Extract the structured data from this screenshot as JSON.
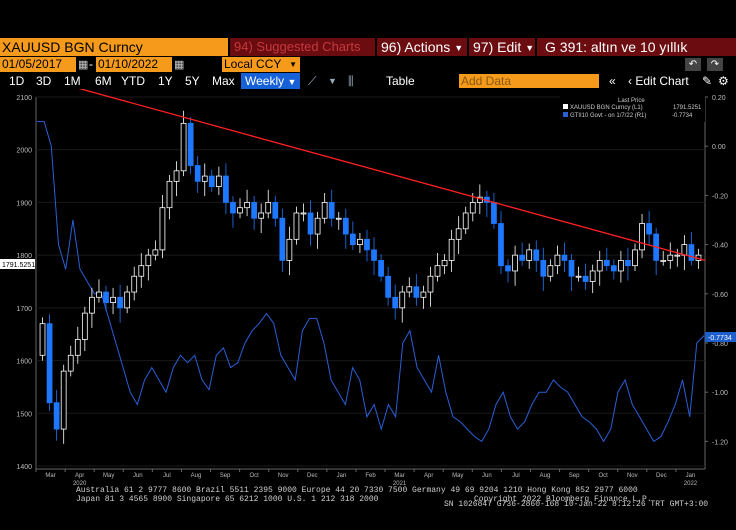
{
  "security_label": "XAUUSD BGN Curncy",
  "suggested_charts": "94) Suggested Charts",
  "actions_label": "96) Actions",
  "edit_label": "97) Edit",
  "title": "G 391: altın ve 10 yıllık",
  "start_date": "01/05/2017",
  "end_date": "01/10/2022",
  "currency": "Local CCY",
  "periods": [
    "1D",
    "3D",
    "1M",
    "6M",
    "YTD",
    "1Y",
    "5Y",
    "Max"
  ],
  "frequency": "Weekly",
  "table_label": "Table",
  "add_data_placeholder": "Add Data",
  "edit_chart_label": "Edit Chart",
  "legend": {
    "header": "Last Price",
    "series1_label": "XAUUSD BGN Curncy  (L1)",
    "series1_value": "1791.5251",
    "series2_label": "GTII10 Govt - on 1/7/22  (R1)",
    "series2_value": "-0.7734"
  },
  "left_last_label": "1791.5251",
  "right_last_label": "-0.7734",
  "colors": {
    "up": "#ffffff",
    "down": "#1e78ff",
    "yield": "#2a5fd9",
    "trend": "#ff2020",
    "bloomberg_orange": "#f59a1b",
    "bloomberg_maroon": "#6b0c10"
  },
  "footer": {
    "line1": "Australia 61 2 9777 8600 Brazil 5511 2395 9000 Europe 44 20 7330 7500 Germany 49 69 9204 1210 Hong Kong 852 2977 6000",
    "line2": "Japan 81 3 4565 8900       Singapore 65 6212 1000      U.S. 1 212 318 2000",
    "copyright": "Copyright 2022 Bloomberg Finance L.P.",
    "session": "SN 1026847 G736-2860-168 10-Jan-22  8:12:26 TRT  GMT+3:00"
  },
  "chart_data": {
    "type": "candlestick",
    "y_left": {
      "label": "",
      "range": [
        1400,
        2100
      ],
      "ticks": [
        "1400",
        "1500",
        "1600",
        "1700",
        "1800",
        "1900",
        "2000",
        "2100"
      ]
    },
    "y_right": {
      "label": "",
      "range": [
        -1.3,
        0.2
      ],
      "ticks": [
        "0.20",
        "0.00",
        "-0.20",
        "-0.40",
        "-0.60",
        "-0.80",
        "-1.00",
        "-1.20"
      ]
    },
    "x_months": [
      "Mar",
      "Apr",
      "May",
      "Jun",
      "Jul",
      "Aug",
      "Sep",
      "Oct",
      "Nov",
      "Dec",
      "Jan",
      "Feb",
      "Mar",
      "Apr",
      "May",
      "Jun",
      "Jul",
      "Aug",
      "Sep",
      "Oct",
      "Nov",
      "Dec",
      "Jan"
    ],
    "x_years": [
      "2020",
      "2021",
      "2022"
    ],
    "gold_close": [
      1670,
      1520,
      1470,
      1580,
      1610,
      1640,
      1690,
      1720,
      1730,
      1710,
      1720,
      1700,
      1730,
      1760,
      1780,
      1800,
      1810,
      1890,
      1940,
      1960,
      2050,
      1970,
      1940,
      1950,
      1930,
      1950,
      1900,
      1880,
      1890,
      1900,
      1870,
      1880,
      1900,
      1870,
      1790,
      1830,
      1880,
      1880,
      1840,
      1870,
      1900,
      1870,
      1870,
      1840,
      1820,
      1830,
      1810,
      1790,
      1760,
      1720,
      1700,
      1730,
      1740,
      1720,
      1730,
      1760,
      1780,
      1790,
      1830,
      1850,
      1880,
      1900,
      1910,
      1900,
      1860,
      1780,
      1770,
      1800,
      1790,
      1810,
      1790,
      1760,
      1780,
      1800,
      1790,
      1760,
      1760,
      1750,
      1770,
      1790,
      1780,
      1770,
      1790,
      1780,
      1810,
      1860,
      1840,
      1790,
      1790,
      1800,
      1800,
      1820,
      1790,
      1800
    ],
    "real_yield": [
      0.1,
      0.1,
      0.0,
      -0.4,
      -0.5,
      -0.3,
      -0.5,
      -0.55,
      -0.6,
      -0.6,
      -0.7,
      -0.8,
      -0.9,
      -1.0,
      -1.05,
      -0.95,
      -0.9,
      -0.95,
      -1.0,
      -0.9,
      -0.85,
      -0.88,
      -0.85,
      -0.95,
      -0.99,
      -0.85,
      -0.82,
      -0.9,
      -0.88,
      -0.8,
      -0.75,
      -0.72,
      -0.68,
      -0.72,
      -0.85,
      -0.9,
      -0.95,
      -0.75,
      -0.7,
      -0.7,
      -0.8,
      -0.95,
      -1.0,
      -1.05,
      -0.9,
      -0.95,
      -1.1,
      -1.05,
      -1.15,
      -1.05,
      -1.1,
      -0.8,
      -0.75,
      -0.9,
      -0.95,
      -1.0,
      -0.85,
      -1.0,
      -1.1,
      -1.12,
      -1.15,
      -1.18,
      -1.2,
      -1.15,
      -1.05,
      -1.0,
      -1.1,
      -1.15,
      -1.12,
      -1.05,
      -1.0,
      -1.0,
      -0.95,
      -0.98,
      -1.0,
      -1.05,
      -1.1,
      -1.12,
      -1.15,
      -1.2,
      -1.15,
      -1.0,
      -0.95,
      -1.05,
      -1.1,
      -1.15,
      -1.2,
      -1.18,
      -1.12,
      -1.05,
      -0.95,
      -1.1,
      -0.8,
      -0.77
    ],
    "trendline": {
      "from": {
        "date": "2020-03",
        "value": 2125
      },
      "to": {
        "date": "2022-01",
        "value": 1790
      }
    }
  }
}
